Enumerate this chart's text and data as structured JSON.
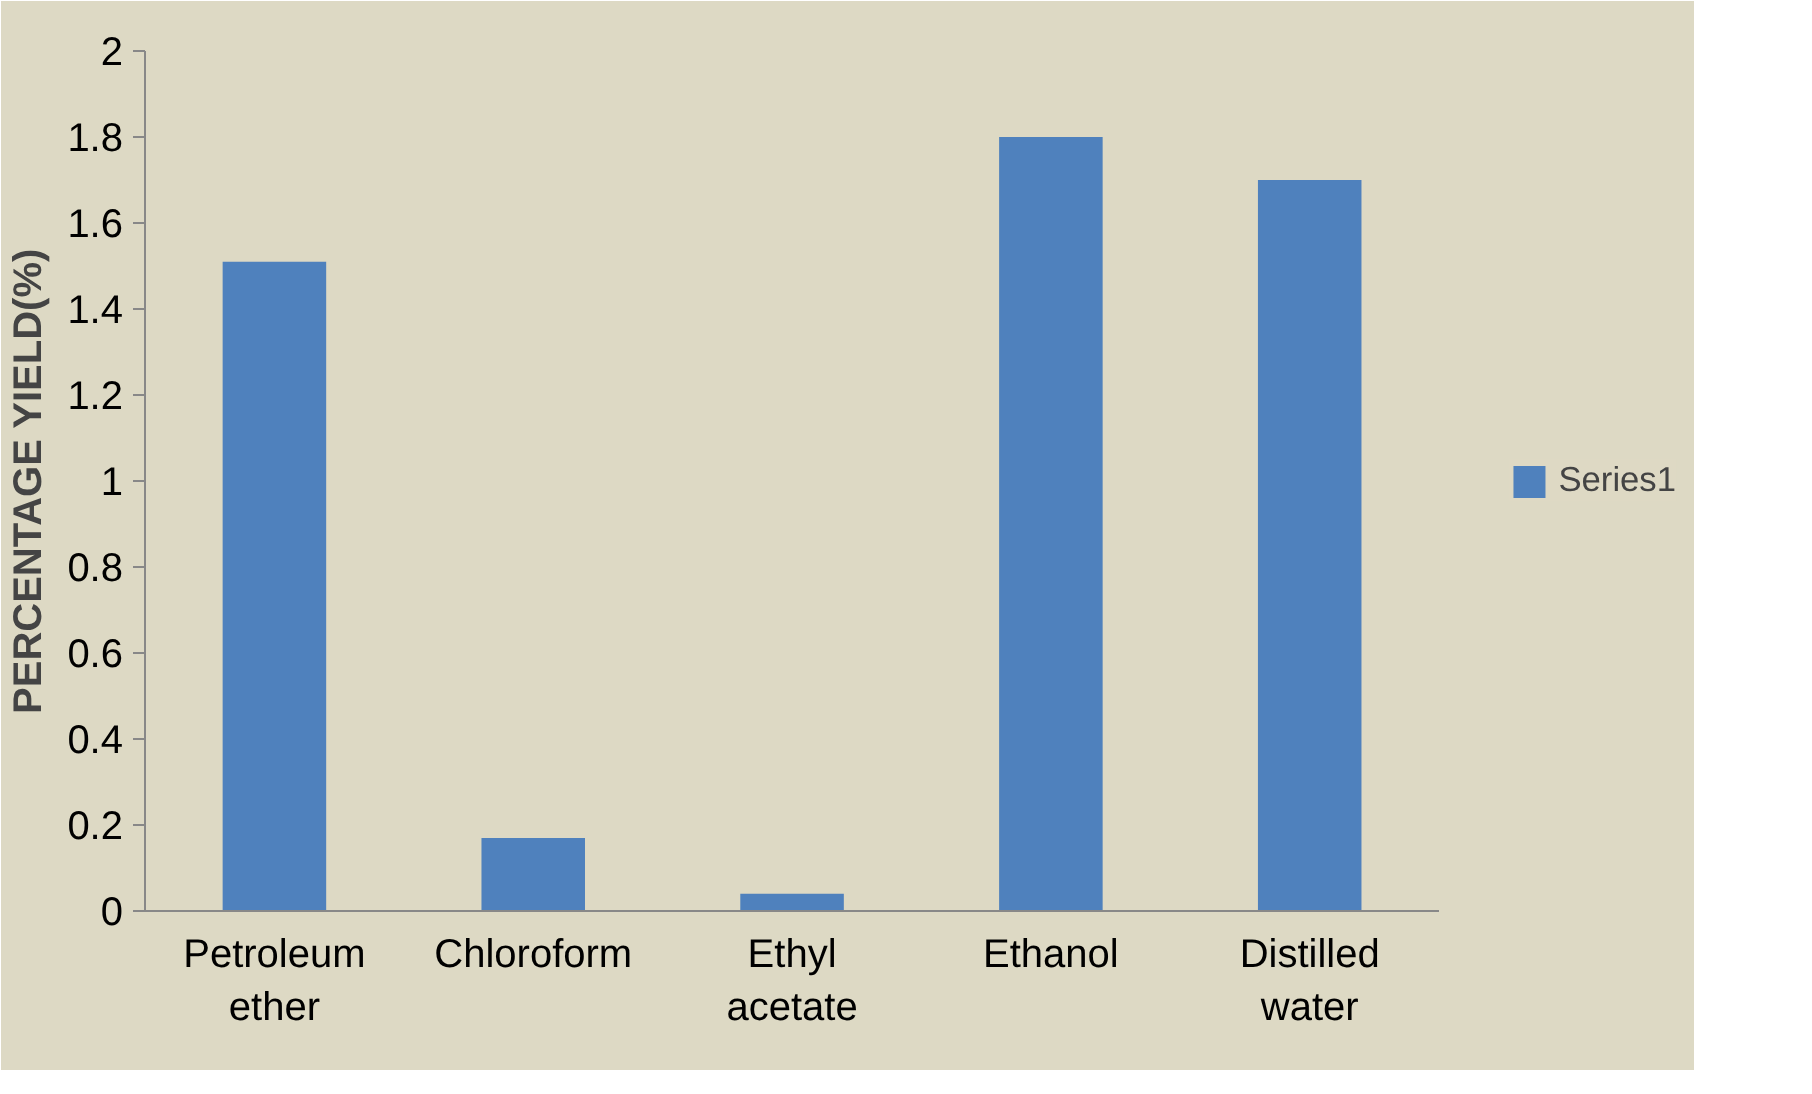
{
  "chart_data": {
    "type": "bar",
    "ylabel": "PERCENTAGE YIELD(%)",
    "categories": [
      "Petroleum ether",
      "Chloroform",
      "Ethyl acetate",
      "Ethanol",
      "Distilled water"
    ],
    "series": [
      {
        "name": "Series1",
        "color": "#4f81bd",
        "values": [
          1.51,
          0.17,
          0.04,
          1.8,
          1.7
        ]
      }
    ],
    "ylim": [
      0,
      2
    ],
    "yticks": [
      0,
      0.2,
      0.4,
      0.6,
      0.8,
      1,
      1.2,
      1.4,
      1.6,
      1.8,
      2
    ],
    "grid": false,
    "legend": "right"
  }
}
